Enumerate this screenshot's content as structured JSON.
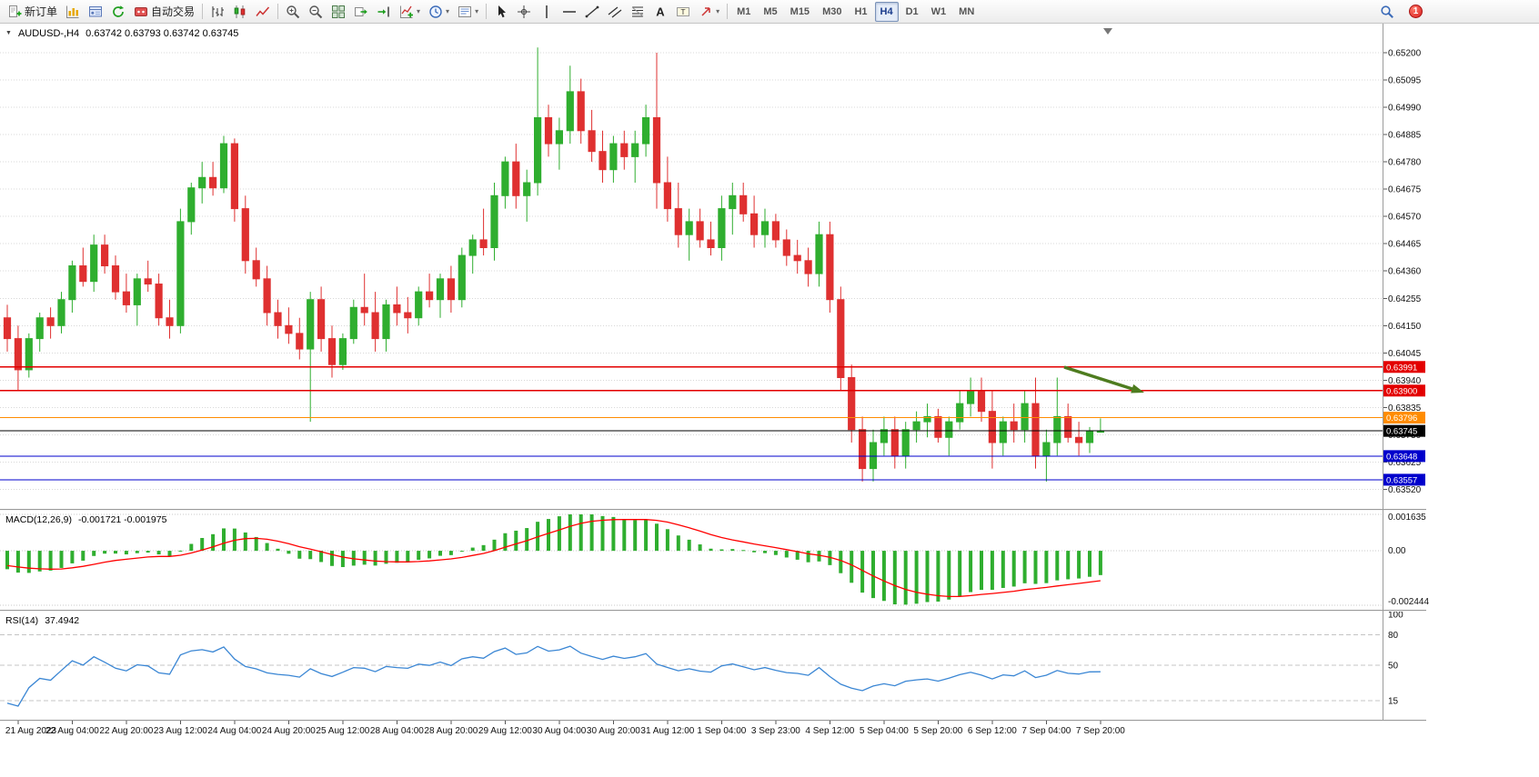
{
  "toolbar": {
    "new_order": "新订单",
    "auto_trading": "自动交易",
    "timeframes": [
      "M1",
      "M5",
      "M15",
      "M30",
      "H1",
      "H4",
      "D1",
      "W1",
      "MN"
    ],
    "active_timeframe": "H4",
    "notification_count": "1"
  },
  "chart": {
    "symbol_title": "AUDUSD-,H4",
    "ohlc": "0.63742  0.63793  0.63742  0.63745",
    "price_axis_labels": [
      "0.65200",
      "0.65095",
      "0.64990",
      "0.64885",
      "0.64780",
      "0.64675",
      "0.64570",
      "0.64465",
      "0.64360",
      "0.64255",
      "0.64150",
      "0.64045",
      "0.63940",
      "0.63835",
      "0.63730",
      "0.63625",
      "0.63520"
    ],
    "time_axis_labels": [
      "21 Aug 2023",
      "22 Aug 04:00",
      "22 Aug 20:00",
      "23 Aug 12:00",
      "24 Aug 04:00",
      "24 Aug 20:00",
      "25 Aug 12:00",
      "28 Aug 04:00",
      "28 Aug 20:00",
      "29 Aug 12:00",
      "30 Aug 04:00",
      "30 Aug 20:00",
      "31 Aug 12:00",
      "1 Sep 04:00",
      "3 Sep 23:00",
      "4 Sep 12:00",
      "5 Sep 04:00",
      "5 Sep 20:00",
      "6 Sep 12:00",
      "7 Sep 04:00",
      "7 Sep 20:00"
    ],
    "hlines": [
      {
        "price": 0.63991,
        "color": "#e30000",
        "label": "0.63991",
        "style": "line"
      },
      {
        "price": 0.639,
        "color": "#e30000",
        "label": "0.63900",
        "style": "line"
      },
      {
        "price": 0.63796,
        "color": "#ff8c00",
        "label": "0.63796",
        "style": "line"
      },
      {
        "price": 0.63745,
        "color": "#000000",
        "label": "0.63745",
        "style": "current"
      },
      {
        "price": 0.63648,
        "color": "#0000cc",
        "label": "0.63648",
        "style": "line"
      },
      {
        "price": 0.63557,
        "color": "#0000cc",
        "label": "0.63557",
        "style": "line"
      }
    ]
  },
  "indicators": {
    "macd": {
      "label": "MACD(12,26,9)",
      "values": "-0.001721 -0.001975",
      "axis_labels": [
        "0.001635",
        "0.00",
        "-0.002444"
      ],
      "max": 0.001635,
      "min": -0.002444
    },
    "rsi": {
      "label": "RSI(14)",
      "value": "37.4942",
      "axis_labels": [
        [
          "100",
          100
        ],
        [
          "80",
          80
        ],
        [
          "50",
          50
        ],
        [
          "15",
          15
        ]
      ],
      "levels": [
        80,
        50,
        15
      ]
    }
  },
  "colors": {
    "bull": "#2fae2f",
    "bear": "#df3030",
    "macd_hist": "#2fae2f",
    "macd_signal": "#ff0000",
    "rsi_line": "#3a86d4",
    "grid": "#d8d8d8",
    "arrow": "#4e7c1f",
    "axis_text": "#111111"
  },
  "chart_data": {
    "type": "candlestick",
    "symbol": "AUDUSD",
    "timeframe": "H4",
    "price_range": [
      0.6346,
      0.6532
    ],
    "ohlc_format": [
      "open",
      "high",
      "low",
      "close"
    ],
    "candles": [
      [
        0.6418,
        0.6423,
        0.6405,
        0.641
      ],
      [
        0.641,
        0.6415,
        0.639,
        0.6398
      ],
      [
        0.6398,
        0.6412,
        0.6395,
        0.641
      ],
      [
        0.641,
        0.642,
        0.6405,
        0.6418
      ],
      [
        0.6418,
        0.6422,
        0.641,
        0.6415
      ],
      [
        0.6415,
        0.6428,
        0.6412,
        0.6425
      ],
      [
        0.6425,
        0.644,
        0.642,
        0.6438
      ],
      [
        0.6438,
        0.6445,
        0.643,
        0.6432
      ],
      [
        0.6432,
        0.645,
        0.6428,
        0.6446
      ],
      [
        0.6446,
        0.645,
        0.6435,
        0.6438
      ],
      [
        0.6438,
        0.6442,
        0.6425,
        0.6428
      ],
      [
        0.6428,
        0.6435,
        0.642,
        0.6423
      ],
      [
        0.6423,
        0.6435,
        0.6415,
        0.6433
      ],
      [
        0.6433,
        0.644,
        0.6428,
        0.6431
      ],
      [
        0.6431,
        0.6435,
        0.6415,
        0.6418
      ],
      [
        0.6418,
        0.6425,
        0.641,
        0.6415
      ],
      [
        0.6415,
        0.646,
        0.6412,
        0.6455
      ],
      [
        0.6455,
        0.647,
        0.645,
        0.6468
      ],
      [
        0.6468,
        0.6478,
        0.6462,
        0.6472
      ],
      [
        0.6472,
        0.6478,
        0.6465,
        0.6468
      ],
      [
        0.6468,
        0.6488,
        0.6466,
        0.6485
      ],
      [
        0.6485,
        0.6487,
        0.6455,
        0.646
      ],
      [
        0.646,
        0.6465,
        0.6435,
        0.644
      ],
      [
        0.644,
        0.6445,
        0.643,
        0.6433
      ],
      [
        0.6433,
        0.6438,
        0.6415,
        0.642
      ],
      [
        0.642,
        0.6425,
        0.641,
        0.6415
      ],
      [
        0.6415,
        0.6422,
        0.6408,
        0.6412
      ],
      [
        0.6412,
        0.6418,
        0.6402,
        0.6406
      ],
      [
        0.6406,
        0.6428,
        0.6378,
        0.6425
      ],
      [
        0.6425,
        0.643,
        0.6405,
        0.641
      ],
      [
        0.641,
        0.6415,
        0.6395,
        0.64
      ],
      [
        0.64,
        0.6412,
        0.6398,
        0.641
      ],
      [
        0.641,
        0.6425,
        0.6408,
        0.6422
      ],
      [
        0.6422,
        0.6435,
        0.6415,
        0.642
      ],
      [
        0.642,
        0.6428,
        0.6405,
        0.641
      ],
      [
        0.641,
        0.6425,
        0.6405,
        0.6423
      ],
      [
        0.6423,
        0.643,
        0.6415,
        0.642
      ],
      [
        0.642,
        0.6426,
        0.6412,
        0.6418
      ],
      [
        0.6418,
        0.643,
        0.6415,
        0.6428
      ],
      [
        0.6428,
        0.6435,
        0.6422,
        0.6425
      ],
      [
        0.6425,
        0.6435,
        0.6418,
        0.6433
      ],
      [
        0.6433,
        0.6438,
        0.642,
        0.6425
      ],
      [
        0.6425,
        0.6445,
        0.6422,
        0.6442
      ],
      [
        0.6442,
        0.645,
        0.6435,
        0.6448
      ],
      [
        0.6448,
        0.646,
        0.6442,
        0.6445
      ],
      [
        0.6445,
        0.647,
        0.644,
        0.6465
      ],
      [
        0.6465,
        0.648,
        0.646,
        0.6478
      ],
      [
        0.6478,
        0.6485,
        0.646,
        0.6465
      ],
      [
        0.6465,
        0.6475,
        0.6455,
        0.647
      ],
      [
        0.647,
        0.6522,
        0.6465,
        0.6495
      ],
      [
        0.6495,
        0.65,
        0.648,
        0.6485
      ],
      [
        0.6485,
        0.6495,
        0.6475,
        0.649
      ],
      [
        0.649,
        0.6515,
        0.6485,
        0.6505
      ],
      [
        0.6505,
        0.651,
        0.6485,
        0.649
      ],
      [
        0.649,
        0.6498,
        0.6478,
        0.6482
      ],
      [
        0.6482,
        0.649,
        0.647,
        0.6475
      ],
      [
        0.6475,
        0.6488,
        0.647,
        0.6485
      ],
      [
        0.6485,
        0.649,
        0.6475,
        0.648
      ],
      [
        0.648,
        0.649,
        0.647,
        0.6485
      ],
      [
        0.6485,
        0.65,
        0.648,
        0.6495
      ],
      [
        0.6495,
        0.652,
        0.646,
        0.647
      ],
      [
        0.647,
        0.648,
        0.6455,
        0.646
      ],
      [
        0.646,
        0.647,
        0.6445,
        0.645
      ],
      [
        0.645,
        0.646,
        0.644,
        0.6455
      ],
      [
        0.6455,
        0.646,
        0.6445,
        0.6448
      ],
      [
        0.6448,
        0.6455,
        0.6442,
        0.6445
      ],
      [
        0.6445,
        0.6465,
        0.644,
        0.646
      ],
      [
        0.646,
        0.647,
        0.645,
        0.6465
      ],
      [
        0.6465,
        0.647,
        0.6455,
        0.6458
      ],
      [
        0.6458,
        0.6465,
        0.6445,
        0.645
      ],
      [
        0.645,
        0.646,
        0.6445,
        0.6455
      ],
      [
        0.6455,
        0.6458,
        0.6445,
        0.6448
      ],
      [
        0.6448,
        0.6452,
        0.6438,
        0.6442
      ],
      [
        0.6442,
        0.6448,
        0.6435,
        0.644
      ],
      [
        0.644,
        0.6445,
        0.643,
        0.6435
      ],
      [
        0.6435,
        0.6455,
        0.643,
        0.645
      ],
      [
        0.645,
        0.6455,
        0.642,
        0.6425
      ],
      [
        0.6425,
        0.643,
        0.639,
        0.6395
      ],
      [
        0.6395,
        0.64,
        0.637,
        0.6375
      ],
      [
        0.6375,
        0.638,
        0.6355,
        0.636
      ],
      [
        0.636,
        0.6375,
        0.6355,
        0.637
      ],
      [
        0.637,
        0.638,
        0.6365,
        0.6375
      ],
      [
        0.6375,
        0.638,
        0.636,
        0.6365
      ],
      [
        0.6365,
        0.6378,
        0.636,
        0.6375
      ],
      [
        0.6375,
        0.6382,
        0.637,
        0.6378
      ],
      [
        0.6378,
        0.6385,
        0.6372,
        0.638
      ],
      [
        0.638,
        0.6383,
        0.637,
        0.6372
      ],
      [
        0.6372,
        0.638,
        0.6365,
        0.6378
      ],
      [
        0.6378,
        0.639,
        0.6375,
        0.6385
      ],
      [
        0.6385,
        0.6395,
        0.638,
        0.639
      ],
      [
        0.639,
        0.6395,
        0.6378,
        0.6382
      ],
      [
        0.6382,
        0.639,
        0.636,
        0.637
      ],
      [
        0.637,
        0.638,
        0.6365,
        0.6378
      ],
      [
        0.6378,
        0.6385,
        0.637,
        0.6375
      ],
      [
        0.6375,
        0.639,
        0.637,
        0.6385
      ],
      [
        0.6385,
        0.6395,
        0.636,
        0.6365
      ],
      [
        0.6365,
        0.6375,
        0.6355,
        0.637
      ],
      [
        0.637,
        0.6395,
        0.6365,
        0.638
      ],
      [
        0.638,
        0.6385,
        0.637,
        0.6372
      ],
      [
        0.6372,
        0.6378,
        0.6365,
        0.637
      ],
      [
        0.637,
        0.6376,
        0.6366,
        0.63742
      ],
      [
        0.63742,
        0.63793,
        0.63742,
        0.63745
      ]
    ],
    "overlay_hlines": [
      0.63991,
      0.639,
      0.63796,
      0.63745,
      0.63648,
      0.63557
    ],
    "indicators": [
      {
        "name": "MACD",
        "params": [
          12,
          26,
          9
        ],
        "last_values": [
          -0.001721,
          -0.001975
        ]
      },
      {
        "name": "RSI",
        "params": [
          14
        ],
        "last_value": 37.4942
      }
    ]
  }
}
